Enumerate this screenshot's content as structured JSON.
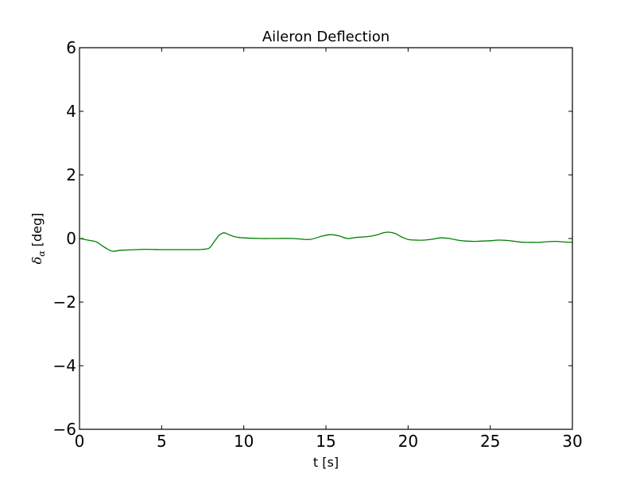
{
  "chart_data": {
    "type": "line",
    "title": "Aileron Deflection",
    "xlabel": "t [s]",
    "ylabel_symbol": "δ",
    "ylabel_subscript": "α",
    "ylabel_unit": "[deg]",
    "xlim": [
      0,
      30
    ],
    "ylim": [
      -6,
      6
    ],
    "xticks": [
      0,
      5,
      10,
      15,
      20,
      25,
      30
    ],
    "xtick_labels": [
      "0",
      "5",
      "10",
      "15",
      "20",
      "25",
      "30"
    ],
    "yticks": [
      -6,
      -4,
      -2,
      0,
      2,
      4,
      6
    ],
    "ytick_labels": [
      "−6",
      "−4",
      "−2",
      "0",
      "2",
      "4",
      "6"
    ],
    "grid": false,
    "line_color": "#008000",
    "series": [
      {
        "x": [
          0,
          0.5,
          1.0,
          1.3,
          1.6,
          2.0,
          2.5,
          3.0,
          4.0,
          5.0,
          6.0,
          7.0,
          7.5,
          7.9,
          8.2,
          8.5,
          8.8,
          9.1,
          9.5,
          10.0,
          11.0,
          12.0,
          13.0,
          14.0,
          14.8,
          15.3,
          15.8,
          16.3,
          16.8,
          17.5,
          18.0,
          18.5,
          18.8,
          19.2,
          19.6,
          20.0,
          20.5,
          21.0,
          21.5,
          22.0,
          22.5,
          23.0,
          23.5,
          24.0,
          24.5,
          25.0,
          25.5,
          26.0,
          26.5,
          27.0,
          27.5,
          28.0,
          28.5,
          29.0,
          29.5,
          30.0
        ],
        "y": [
          0.0,
          -0.05,
          -0.1,
          -0.2,
          -0.3,
          -0.4,
          -0.37,
          -0.36,
          -0.34,
          -0.35,
          -0.35,
          -0.35,
          -0.34,
          -0.3,
          -0.1,
          0.1,
          0.18,
          0.12,
          0.05,
          0.02,
          0.0,
          0.0,
          0.0,
          -0.03,
          0.08,
          0.12,
          0.08,
          0.0,
          0.03,
          0.06,
          0.1,
          0.18,
          0.2,
          0.16,
          0.05,
          -0.03,
          -0.05,
          -0.05,
          -0.02,
          0.02,
          0.0,
          -0.05,
          -0.08,
          -0.09,
          -0.08,
          -0.07,
          -0.05,
          -0.06,
          -0.09,
          -0.12,
          -0.12,
          -0.12,
          -0.1,
          -0.09,
          -0.11,
          -0.12
        ]
      }
    ]
  }
}
